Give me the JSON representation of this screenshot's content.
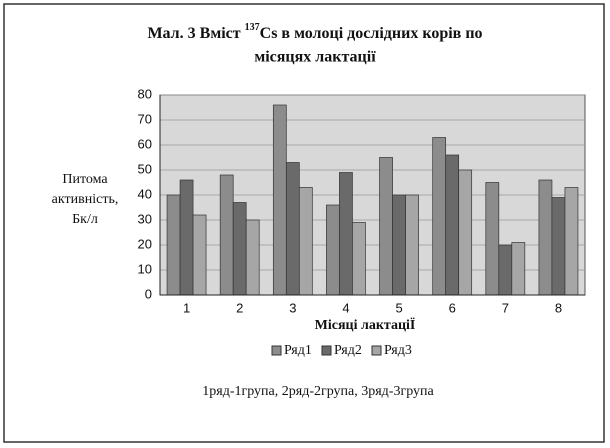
{
  "chart_data": {
    "type": "bar",
    "title": [
      "Мал.  3   Вміст ",
      "137",
      "Cs в молоці дослідних корів по",
      "місяцях лактації"
    ],
    "ylabel": [
      "Питома",
      "активність,",
      "Бк/л"
    ],
    "xlabel": "Місяці лактаціЇ",
    "note": "1ряд-1група, 2ряд-2група, 3ряд-3група",
    "categories": [
      "1",
      "2",
      "3",
      "4",
      "5",
      "6",
      "7",
      "8"
    ],
    "series": [
      {
        "name": "Ряд1",
        "color": "#8c8c8c",
        "values": [
          40,
          48,
          76,
          36,
          55,
          63,
          45,
          46
        ]
      },
      {
        "name": "Ряд2",
        "color": "#6a6a6a",
        "values": [
          46,
          37,
          53,
          49,
          40,
          56,
          20,
          39
        ]
      },
      {
        "name": "Ряд3",
        "color": "#a6a6a6",
        "values": [
          32,
          30,
          43,
          29,
          40,
          50,
          21,
          43
        ]
      }
    ],
    "ylim": [
      0,
      80
    ],
    "yticks": [
      0,
      10,
      20,
      30,
      40,
      50,
      60,
      70,
      80
    ],
    "grid": true
  }
}
